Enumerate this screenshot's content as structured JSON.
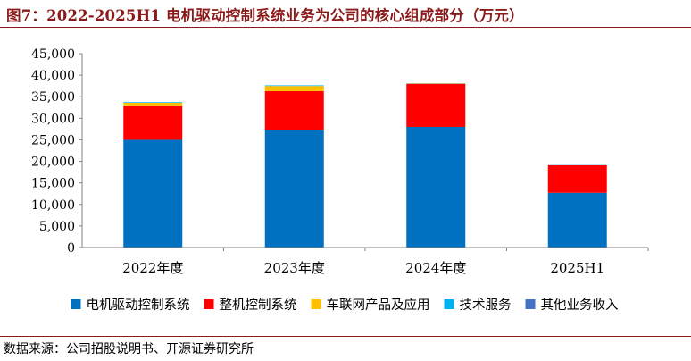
{
  "title": "图7：2022-2025H1 电机驱动控制系统业务为公司的核心组成部分（万元）",
  "source": "数据来源：公司招股说明书、开源证券研究所",
  "chart_data": {
    "type": "stacked-bar",
    "categories": [
      "2022年度",
      "2023年度",
      "2024年度",
      "2025H1"
    ],
    "series": [
      {
        "name": "电机驱动控制系统",
        "color": "#0070C0",
        "values": [
          25000,
          27300,
          28000,
          12700
        ]
      },
      {
        "name": "整机控制系统",
        "color": "#FF0000",
        "values": [
          7800,
          9000,
          10000,
          6400
        ]
      },
      {
        "name": "车联网产品及应用",
        "color": "#FFC000",
        "values": [
          800,
          1200,
          100,
          0
        ]
      },
      {
        "name": "技术服务",
        "color": "#00B0F0",
        "values": [
          150,
          150,
          50,
          50
        ]
      },
      {
        "name": "其他业务收入",
        "color": "#4472C4",
        "values": [
          0,
          0,
          0,
          0
        ]
      }
    ],
    "ylim": [
      0,
      45000
    ],
    "yticks": [
      0,
      5000,
      10000,
      15000,
      20000,
      25000,
      30000,
      35000,
      40000,
      45000
    ],
    "ytick_labels": [
      "0",
      "5,000",
      "10,000",
      "15,000",
      "20,000",
      "25,000",
      "30,000",
      "35,000",
      "40,000",
      "45,000"
    ],
    "grid": false,
    "legend_position": "bottom"
  }
}
